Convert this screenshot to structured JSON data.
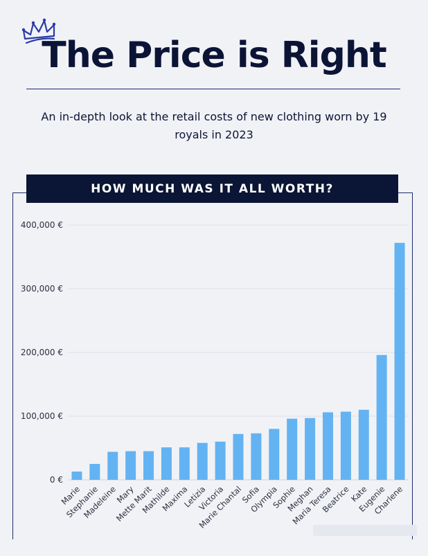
{
  "header": {
    "title": "The Price is Right",
    "subtitle": "An in-depth look at the retail costs of new clothing worn by 19 royals in 2023",
    "crown_icon": "crown-icon",
    "accent_color": "#1c2a6b"
  },
  "chart_section": {
    "banner_title": "HOW MUCH WAS IT ALL WORTH?"
  },
  "chart_data": {
    "type": "bar",
    "title": "HOW MUCH WAS IT ALL WORTH?",
    "xlabel": "",
    "ylabel": "",
    "categories": [
      "Marie",
      "Stephanie",
      "Madeleine",
      "Mary",
      "Mette Marit",
      "Mathilde",
      "Maxima",
      "Letizia",
      "Victoria",
      "Marie Chantal",
      "Sofia",
      "Olympia",
      "Sophie",
      "Meghan",
      "Maria Teresa",
      "Beatrice",
      "Kate",
      "Eugenie",
      "Charlene"
    ],
    "values": [
      13000,
      25000,
      44000,
      45000,
      45000,
      51000,
      51000,
      58000,
      60000,
      72000,
      73000,
      80000,
      96000,
      97000,
      106000,
      107000,
      110000,
      196000,
      372000
    ],
    "ylim": [
      0,
      400000
    ],
    "yticks": [
      0,
      100000,
      200000,
      300000,
      400000
    ],
    "ytick_labels": [
      "0 €",
      "100,000 €",
      "200,000 €",
      "300,000 €",
      "400,000 €"
    ],
    "bar_color": "#63b3f2",
    "grid": true,
    "legend": "none"
  }
}
